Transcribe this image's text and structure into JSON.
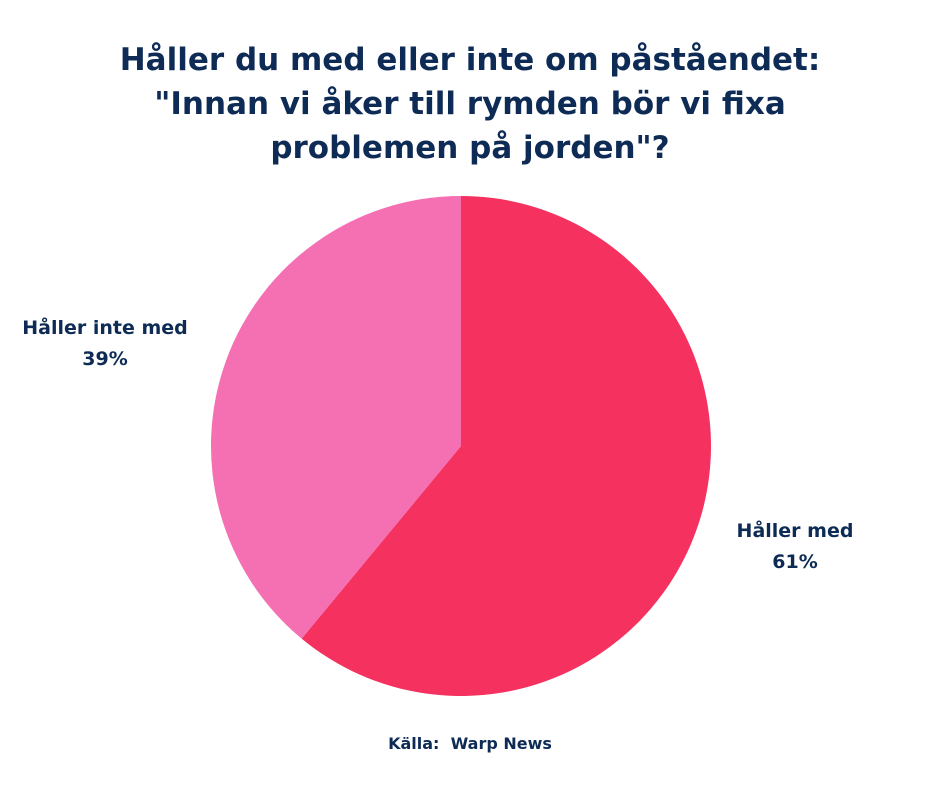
{
  "chart_data": {
    "type": "pie",
    "title_lines": [
      "Håller du med eller inte om påståendet:",
      "\"Innan vi åker till rymden bör vi fixa",
      "problemen på jorden\"?"
    ],
    "slices": [
      {
        "label": "Håller med",
        "value": 61,
        "value_label": "61%",
        "color": "#f4315f"
      },
      {
        "label": "Håller inte med",
        "value": 39,
        "value_label": "39%",
        "color": "#f56fb3"
      }
    ],
    "start_angle": "12 o'clock",
    "direction": "clockwise",
    "source": "Källa:  Warp News"
  }
}
